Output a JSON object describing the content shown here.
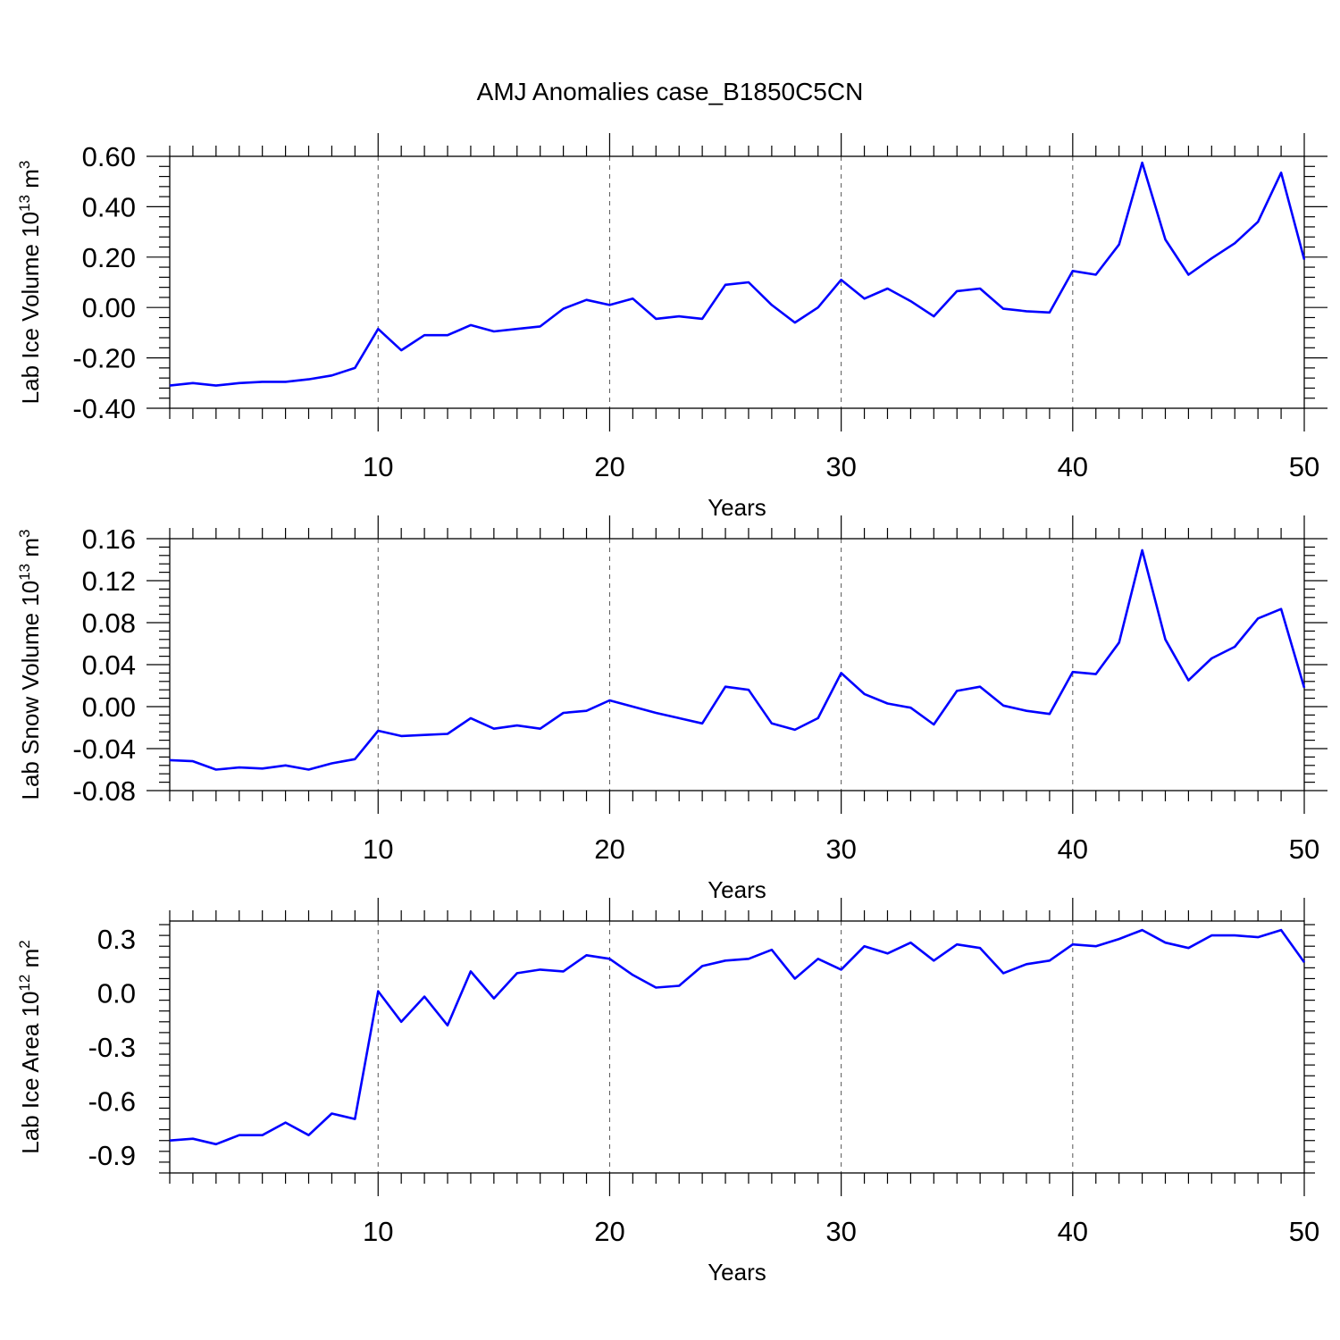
{
  "figure_title": "AMJ Anomalies case_B1850C5CN",
  "colors": {
    "series": "#0000ff",
    "grid": "#555555",
    "axes": "#000000"
  },
  "chart_data": [
    {
      "type": "line",
      "ylabel": {
        "main": "Lab Ice Volume 10",
        "sup": "13",
        "mid": " m",
        "sup2": "3"
      },
      "xlabel": "Years",
      "xlim": [
        1,
        50
      ],
      "ylim": [
        -0.4,
        0.6
      ],
      "xticks": [
        10,
        20,
        30,
        40,
        50
      ],
      "yticks": [
        -0.4,
        -0.2,
        0.0,
        0.2,
        0.4,
        0.6
      ],
      "ytick_labels": [
        "-0.40",
        "-0.20",
        "0.00",
        "0.20",
        "0.40",
        "0.60"
      ],
      "grid": "vertical dashed at major x ticks",
      "series": [
        {
          "x": [
            1,
            2,
            3,
            4,
            5,
            6,
            7,
            8,
            9,
            10,
            11,
            12,
            13,
            14,
            15,
            16,
            17,
            18,
            19,
            20,
            21,
            22,
            23,
            24,
            25,
            26,
            27,
            28,
            29,
            30,
            31,
            32,
            33,
            34,
            35,
            36,
            37,
            38,
            39,
            40,
            41,
            42,
            43,
            44,
            45,
            46,
            47,
            48,
            49,
            50
          ],
          "y": [
            -0.31,
            -0.3,
            -0.31,
            -0.3,
            -0.295,
            -0.295,
            -0.285,
            -0.27,
            -0.24,
            -0.085,
            -0.17,
            -0.11,
            -0.11,
            -0.07,
            -0.095,
            -0.085,
            -0.075,
            -0.005,
            0.03,
            0.01,
            0.035,
            -0.045,
            -0.035,
            -0.045,
            0.09,
            0.1,
            0.01,
            -0.06,
            0.0,
            0.11,
            0.035,
            0.075,
            0.025,
            -0.035,
            0.065,
            0.075,
            -0.005,
            -0.015,
            -0.02,
            0.145,
            0.13,
            0.25,
            0.575,
            0.27,
            0.13,
            0.195,
            0.255,
            0.34,
            0.535,
            0.19
          ]
        }
      ]
    },
    {
      "type": "line",
      "ylabel": {
        "main": "Lab Snow Volume 10",
        "sup": "13",
        "mid": " m",
        "sup2": "3"
      },
      "xlabel": "Years",
      "xlim": [
        1,
        50
      ],
      "ylim": [
        -0.08,
        0.16
      ],
      "xticks": [
        10,
        20,
        30,
        40,
        50
      ],
      "yticks": [
        -0.08,
        -0.04,
        0.0,
        0.04,
        0.08,
        0.12,
        0.16
      ],
      "ytick_labels": [
        "-0.08",
        "-0.04",
        "0.00",
        "0.04",
        "0.08",
        "0.12",
        "0.16"
      ],
      "grid": "vertical dashed at major x ticks",
      "series": [
        {
          "x": [
            1,
            2,
            3,
            4,
            5,
            6,
            7,
            8,
            9,
            10,
            11,
            12,
            13,
            14,
            15,
            16,
            17,
            18,
            19,
            20,
            21,
            22,
            23,
            24,
            25,
            26,
            27,
            28,
            29,
            30,
            31,
            32,
            33,
            34,
            35,
            36,
            37,
            38,
            39,
            40,
            41,
            42,
            43,
            44,
            45,
            46,
            47,
            48,
            49,
            50
          ],
          "y": [
            -0.051,
            -0.052,
            -0.06,
            -0.058,
            -0.059,
            -0.056,
            -0.06,
            -0.054,
            -0.05,
            -0.023,
            -0.028,
            -0.027,
            -0.026,
            -0.011,
            -0.021,
            -0.018,
            -0.021,
            -0.006,
            -0.004,
            0.006,
            0.0,
            -0.006,
            -0.011,
            -0.016,
            0.019,
            0.016,
            -0.016,
            -0.022,
            -0.011,
            0.032,
            0.012,
            0.003,
            -0.001,
            -0.017,
            0.015,
            0.019,
            0.001,
            -0.004,
            -0.007,
            0.033,
            0.031,
            0.061,
            0.149,
            0.064,
            0.025,
            0.046,
            0.057,
            0.084,
            0.093,
            0.018
          ]
        }
      ]
    },
    {
      "type": "line",
      "ylabel": {
        "main": "Lab Ice Area 10",
        "sup": "12",
        "mid": " m",
        "sup2": "2"
      },
      "xlabel": "Years",
      "xlim": [
        1,
        50
      ],
      "ylim": [
        -1.0,
        0.4
      ],
      "xticks": [
        10,
        20,
        30,
        40,
        50
      ],
      "yticks": [
        -0.9,
        -0.6,
        -0.3,
        0.0,
        0.3
      ],
      "ytick_labels": [
        "-0.9",
        "-0.6",
        "-0.3",
        "0.0",
        "0.3"
      ],
      "grid": "vertical dashed at major x ticks",
      "series": [
        {
          "x": [
            1,
            2,
            3,
            4,
            5,
            6,
            7,
            8,
            9,
            10,
            11,
            12,
            13,
            14,
            15,
            16,
            17,
            18,
            19,
            20,
            21,
            22,
            23,
            24,
            25,
            26,
            27,
            28,
            29,
            30,
            31,
            32,
            33,
            34,
            35,
            36,
            37,
            38,
            39,
            40,
            41,
            42,
            43,
            44,
            45,
            46,
            47,
            48,
            49,
            50
          ],
          "y": [
            -0.82,
            -0.81,
            -0.84,
            -0.79,
            -0.79,
            -0.72,
            -0.79,
            -0.67,
            -0.7,
            0.01,
            -0.16,
            -0.02,
            -0.18,
            0.12,
            -0.03,
            0.11,
            0.13,
            0.12,
            0.21,
            0.19,
            0.1,
            0.03,
            0.04,
            0.15,
            0.18,
            0.19,
            0.24,
            0.08,
            0.19,
            0.13,
            0.26,
            0.22,
            0.28,
            0.18,
            0.27,
            0.25,
            0.11,
            0.16,
            0.18,
            0.27,
            0.26,
            0.3,
            0.35,
            0.28,
            0.25,
            0.32,
            0.32,
            0.31,
            0.35,
            0.17
          ]
        }
      ]
    }
  ]
}
